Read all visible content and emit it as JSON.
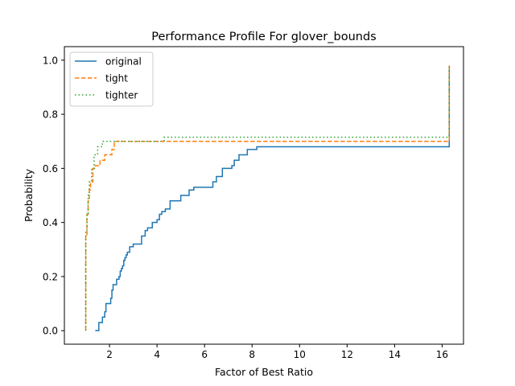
{
  "chart_data": {
    "type": "line",
    "title": "Performance Profile For glover_bounds",
    "xlabel": "Factor of Best Ratio",
    "ylabel": "Probability",
    "xlim": [
      0.1,
      16.9
    ],
    "ylim": [
      -0.05,
      1.05
    ],
    "xticks": [
      2,
      4,
      6,
      8,
      10,
      12,
      14,
      16
    ],
    "yticks": [
      0.0,
      0.2,
      0.4,
      0.6,
      0.8,
      1.0
    ],
    "xtick_labels": [
      "2",
      "4",
      "6",
      "8",
      "10",
      "12",
      "14",
      "16"
    ],
    "ytick_labels": [
      "0.0",
      "0.2",
      "0.4",
      "0.6",
      "0.8",
      "1.0"
    ],
    "grid": false,
    "legend_position": "upper left",
    "step_style": "post",
    "series": [
      {
        "name": "original",
        "color": "#1f77b4",
        "dash": "solid",
        "x": [
          1.4,
          1.55,
          1.7,
          1.8,
          1.85,
          1.95,
          2.05,
          2.1,
          2.15,
          2.3,
          2.4,
          2.45,
          2.5,
          2.55,
          2.6,
          2.65,
          2.7,
          2.75,
          2.85,
          3.0,
          3.2,
          3.35,
          3.5,
          3.6,
          3.7,
          3.8,
          4.0,
          4.1,
          4.2,
          4.35,
          4.55,
          5.0,
          5.35,
          5.55,
          5.95,
          6.35,
          6.5,
          6.75,
          7.0,
          7.15,
          7.25,
          7.45,
          7.8,
          8.2,
          16.3,
          16.3
        ],
        "y": [
          0.0,
          0.03,
          0.05,
          0.07,
          0.1,
          0.1,
          0.12,
          0.15,
          0.17,
          0.19,
          0.2,
          0.22,
          0.23,
          0.24,
          0.26,
          0.27,
          0.28,
          0.29,
          0.31,
          0.32,
          0.32,
          0.35,
          0.37,
          0.38,
          0.38,
          0.4,
          0.41,
          0.43,
          0.44,
          0.45,
          0.48,
          0.5,
          0.52,
          0.53,
          0.53,
          0.55,
          0.57,
          0.6,
          0.6,
          0.61,
          0.63,
          0.65,
          0.67,
          0.68,
          0.68,
          0.98
        ]
      },
      {
        "name": "tight",
        "color": "#ff7f0e",
        "dash": "dashed",
        "x": [
          1.0,
          1.0,
          1.05,
          1.1,
          1.15,
          1.2,
          1.3,
          1.4,
          1.6,
          1.8,
          2.1,
          2.2,
          16.3,
          16.3
        ],
        "y": [
          0.0,
          0.35,
          0.43,
          0.48,
          0.52,
          0.55,
          0.6,
          0.61,
          0.63,
          0.65,
          0.67,
          0.7,
          0.7,
          0.98
        ]
      },
      {
        "name": "tighter",
        "color": "#2ca02c",
        "dash": "dotted",
        "x": [
          1.0,
          1.0,
          1.05,
          1.1,
          1.15,
          1.25,
          1.35,
          1.5,
          1.7,
          2.1,
          4.3,
          16.3,
          16.3
        ],
        "y": [
          0.0,
          0.37,
          0.43,
          0.5,
          0.55,
          0.6,
          0.65,
          0.68,
          0.7,
          0.7,
          0.715,
          0.715,
          0.98
        ]
      }
    ]
  }
}
